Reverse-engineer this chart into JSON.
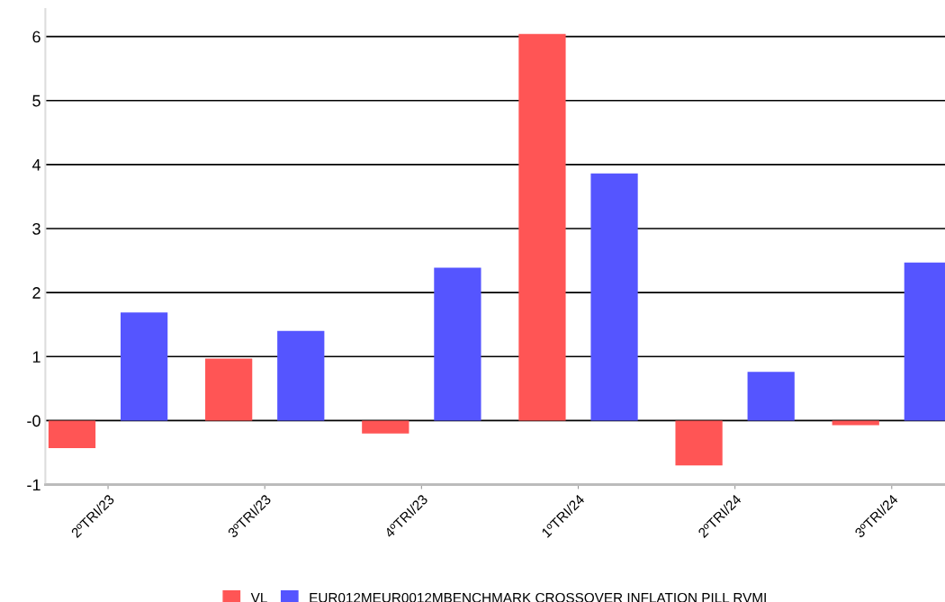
{
  "chart_data": {
    "type": "bar",
    "categories": [
      "2ºTRI/23",
      "3ºTRI/23",
      "4ºTRI/23",
      "1ºTRI/24",
      "2ºTRI/24",
      "3ºTRI/24"
    ],
    "series": [
      {
        "name": "VL",
        "color": "#ff5555",
        "values": [
          -0.43,
          0.97,
          -0.2,
          6.04,
          -0.7,
          -0.07
        ]
      },
      {
        "name": "EUR012MEUR0012MBENCHMARK CROSSOVER INFLATION PILL RVMI",
        "color": "#5555ff",
        "values": [
          1.69,
          1.4,
          2.39,
          3.86,
          0.76,
          2.47
        ]
      }
    ],
    "ylim": [
      -1,
      6.43
    ],
    "yticks": [
      {
        "value": -1,
        "label": "-1"
      },
      {
        "value": 0,
        "label": "-0"
      },
      1,
      2,
      3,
      4,
      5,
      6
    ],
    "grid": "y",
    "legend": "bottom"
  }
}
